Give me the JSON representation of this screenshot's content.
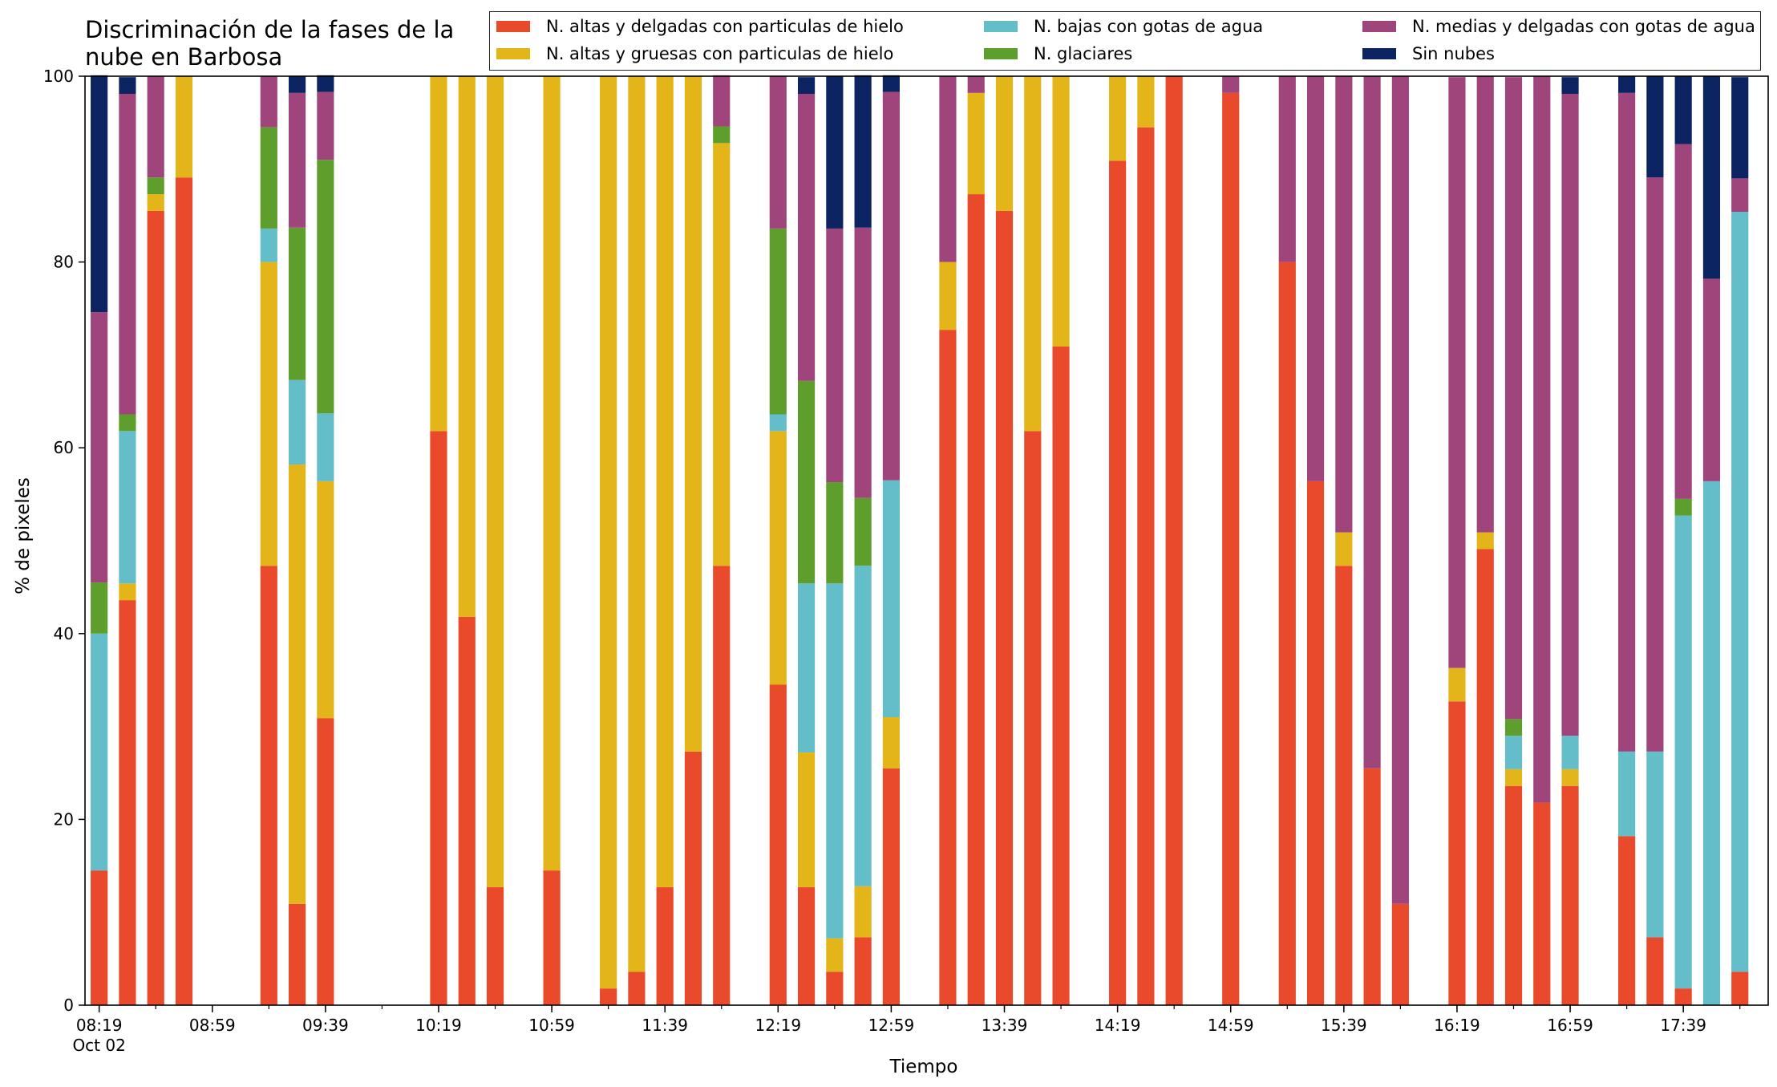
{
  "chart_data": {
    "type": "bar",
    "stacked": true,
    "title": "Discriminación de la fases de la\nnube en Barbosa",
    "xlabel": "Tiempo",
    "ylabel": "% de pixeles",
    "ylim": [
      0,
      100
    ],
    "yticks": [
      0,
      20,
      40,
      60,
      80,
      100
    ],
    "xlim_minutes_after_0819": [
      -5,
      590
    ],
    "xticks": [
      {
        "label": "08:19",
        "sublabel": "Oct 02"
      },
      {
        "label": "08:59"
      },
      {
        "label": "09:39"
      },
      {
        "label": "10:19"
      },
      {
        "label": "10:59"
      },
      {
        "label": "11:39"
      },
      {
        "label": "12:19"
      },
      {
        "label": "12:59"
      },
      {
        "label": "13:39"
      },
      {
        "label": "14:19"
      },
      {
        "label": "14:59"
      },
      {
        "label": "15:39"
      },
      {
        "label": "16:19"
      },
      {
        "label": "16:59"
      },
      {
        "label": "17:39"
      }
    ],
    "grid": false,
    "legend_position": "top",
    "times": [
      "08:19",
      "08:29",
      "08:39",
      "08:49",
      "08:59",
      "09:09",
      "09:19",
      "09:29",
      "09:39",
      "09:49",
      "09:59",
      "10:09",
      "10:19",
      "10:29",
      "10:39",
      "10:49",
      "10:59",
      "11:09",
      "11:19",
      "11:29",
      "11:39",
      "11:49",
      "11:59",
      "12:09",
      "12:19",
      "12:29",
      "12:39",
      "12:49",
      "12:59",
      "13:09",
      "13:19",
      "13:29",
      "13:39",
      "13:49",
      "13:59",
      "14:09",
      "14:19",
      "14:29",
      "14:39",
      "14:49",
      "14:59",
      "15:09",
      "15:19",
      "15:29",
      "15:39",
      "15:49",
      "15:59",
      "16:09",
      "16:19",
      "16:29",
      "16:39",
      "16:49",
      "16:59",
      "17:09",
      "17:19",
      "17:29",
      "17:39",
      "17:49",
      "17:59"
    ],
    "series": [
      {
        "name": "N. altas y delgadas con particulas de hielo",
        "color": "#e84a2b",
        "values": [
          14.5,
          43.6,
          85.5,
          89.1,
          0,
          0,
          47.3,
          10.9,
          30.9,
          0,
          0,
          0,
          61.8,
          41.8,
          12.7,
          0,
          14.5,
          0,
          1.8,
          3.6,
          12.7,
          27.3,
          47.3,
          0,
          34.5,
          12.7,
          3.6,
          7.3,
          25.5,
          0,
          72.7,
          87.3,
          85.5,
          61.8,
          70.9,
          0,
          90.9,
          94.5,
          100,
          0,
          98.2,
          0,
          80.0,
          56.4,
          47.3,
          25.5,
          10.9,
          0,
          32.7,
          49.1,
          23.6,
          21.8,
          23.6,
          0,
          18.2,
          7.3,
          1.8,
          0,
          3.6
        ]
      },
      {
        "name": "N. altas y gruesas con particulas de hielo",
        "color": "#e3b519",
        "values": [
          0,
          1.8,
          1.8,
          10.9,
          0,
          0,
          32.7,
          47.3,
          25.5,
          0,
          0,
          0,
          38.2,
          58.2,
          87.3,
          0,
          85.5,
          0,
          98.2,
          96.4,
          87.3,
          72.7,
          45.5,
          0,
          27.3,
          14.5,
          3.6,
          5.5,
          5.5,
          0,
          7.3,
          10.9,
          14.5,
          38.2,
          29.1,
          0,
          9.1,
          5.5,
          0,
          0,
          0,
          0,
          0,
          0,
          3.6,
          0,
          0,
          0,
          3.6,
          1.8,
          1.8,
          0,
          1.8,
          0,
          0,
          0,
          0,
          0,
          0
        ]
      },
      {
        "name": "N. bajas con gotas de agua",
        "color": "#63bec9",
        "values": [
          25.5,
          16.4,
          0,
          0,
          0,
          0,
          3.6,
          9.1,
          7.3,
          0,
          0,
          0,
          0,
          0,
          0,
          0,
          0,
          0,
          0,
          0,
          0,
          0,
          0,
          0,
          1.8,
          18.2,
          38.2,
          34.5,
          25.5,
          0,
          0,
          0,
          0,
          0,
          0,
          0,
          0,
          0,
          0,
          0,
          0,
          0,
          0,
          0,
          0,
          0,
          0,
          0,
          0,
          0,
          3.6,
          0,
          3.6,
          0,
          9.1,
          20.0,
          50.9,
          56.4,
          81.8
        ]
      },
      {
        "name": "N. glaciares",
        "color": "#5d9e2d",
        "values": [
          5.5,
          1.8,
          1.8,
          0,
          0,
          0,
          10.9,
          16.4,
          27.3,
          0,
          0,
          0,
          0,
          0,
          0,
          0,
          0,
          0,
          0,
          0,
          0,
          0,
          1.8,
          0,
          20.0,
          21.8,
          10.9,
          7.3,
          0,
          0,
          0,
          0,
          0,
          0,
          0,
          0,
          0,
          0,
          0,
          0,
          0,
          0,
          0,
          0,
          0,
          0,
          0,
          0,
          0,
          0,
          1.8,
          0,
          0,
          0,
          0,
          0,
          1.8,
          0,
          0
        ]
      },
      {
        "name": "N. medias y delgadas con gotas de agua",
        "color": "#a0457c",
        "values": [
          29.1,
          34.5,
          10.9,
          0,
          0,
          0,
          5.5,
          14.5,
          7.3,
          0,
          0,
          0,
          0,
          0,
          0,
          0,
          0,
          0,
          0,
          0,
          0,
          0,
          5.5,
          0,
          16.4,
          30.9,
          27.3,
          29.1,
          41.8,
          0,
          20.0,
          1.8,
          0,
          0,
          0,
          0,
          0,
          0,
          0,
          0,
          1.8,
          0,
          20.0,
          43.6,
          49.1,
          74.5,
          89.1,
          0,
          63.6,
          49.1,
          69.1,
          78.2,
          69.1,
          0,
          70.9,
          61.8,
          38.2,
          21.8,
          3.6
        ]
      },
      {
        "name": "Sin nubes",
        "color": "#0c2461",
        "values": [
          25.5,
          1.8,
          0,
          0,
          0,
          0,
          0,
          1.8,
          1.8,
          0,
          0,
          0,
          0,
          0,
          0,
          0,
          0,
          0,
          0,
          0,
          0,
          0,
          0,
          0,
          0,
          1.8,
          16.4,
          16.4,
          1.8,
          0,
          0,
          0,
          0,
          0,
          0,
          0,
          0,
          0,
          0,
          0,
          0,
          0,
          0,
          0,
          0,
          0,
          0,
          0,
          0,
          0,
          0,
          0,
          1.8,
          0,
          1.8,
          10.9,
          7.3,
          21.8,
          10.9
        ]
      }
    ]
  }
}
